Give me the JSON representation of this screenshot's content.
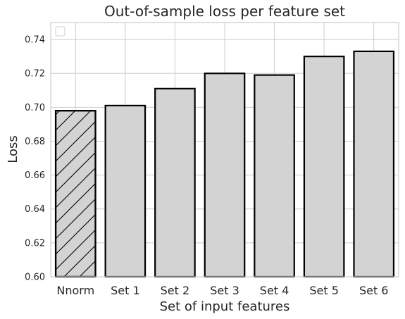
{
  "chart_data": {
    "type": "bar",
    "title": "Out-of-sample loss per feature set",
    "xlabel": "Set of input features",
    "ylabel": "Loss",
    "categories": [
      "Nnorm",
      "Set 1",
      "Set 2",
      "Set 3",
      "Set 4",
      "Set 5",
      "Set 6"
    ],
    "values": [
      0.698,
      0.701,
      0.711,
      0.72,
      0.719,
      0.73,
      0.733
    ],
    "hatched": [
      true,
      false,
      false,
      false,
      false,
      false,
      false
    ],
    "ylim": [
      0.6,
      0.75
    ],
    "yticks": [
      0.6,
      0.62,
      0.64,
      0.66,
      0.68,
      0.7,
      0.72,
      0.74
    ],
    "grid": true,
    "legend": "top-left, empty",
    "colors": {
      "bar_fill": "#d3d3d3",
      "bar_edge": "#000000",
      "grid": "#cccccc"
    }
  }
}
